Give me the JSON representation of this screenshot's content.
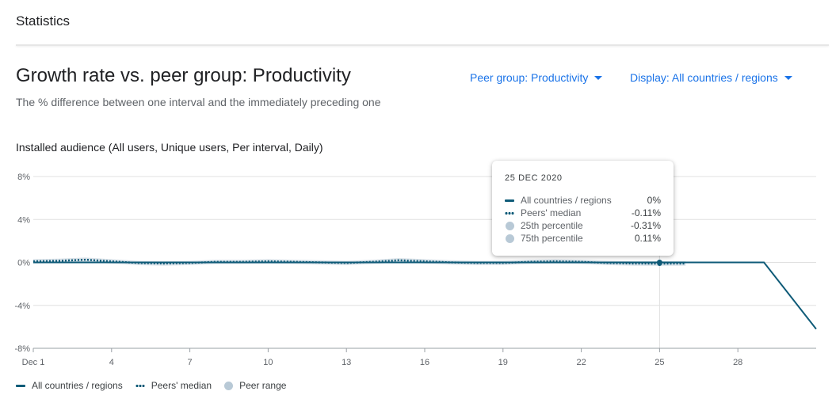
{
  "section": {
    "title": "Statistics"
  },
  "card": {
    "title": "Growth rate vs. peer group: Productivity",
    "subtitle": "The % difference between one interval and the immediately preceding one"
  },
  "controls": {
    "peer_group": "Peer group: Productivity",
    "display": "Display: All countries / regions"
  },
  "chart_label": "Installed audience (All users, Unique users, Per interval, Daily)",
  "colors": {
    "series": "#0f5b78",
    "range": "#b8c9d6",
    "accent": "#1a73e8",
    "grid": "#e0e0e0"
  },
  "tooltip": {
    "date": "25 DEC 2020",
    "rows": [
      {
        "name": "All countries / regions",
        "value": "0%"
      },
      {
        "name": "Peers' median",
        "value": "-0.11%"
      },
      {
        "name": "25th percentile",
        "value": "-0.31%"
      },
      {
        "name": "75th percentile",
        "value": "0.11%"
      }
    ]
  },
  "legend": {
    "items": [
      {
        "name": "All countries / regions",
        "swatch": "line"
      },
      {
        "name": "Peers' median",
        "swatch": "dots"
      },
      {
        "name": "Peer range",
        "swatch": "circle"
      }
    ]
  },
  "chart_data": {
    "type": "line",
    "title": "",
    "xlabel": "",
    "ylabel": "",
    "ylim": [
      -8,
      8
    ],
    "y_ticks": [
      8,
      4,
      0,
      -4,
      -8
    ],
    "y_tick_labels": [
      "8%",
      "4%",
      "0%",
      "-4%",
      "-8%"
    ],
    "x_range": [
      1,
      31
    ],
    "x_ticks": [
      1,
      4,
      7,
      10,
      13,
      16,
      19,
      22,
      25,
      28
    ],
    "x_tick_labels": [
      "Dec 1",
      "4",
      "7",
      "10",
      "13",
      "16",
      "19",
      "22",
      "25",
      "28"
    ],
    "highlight_x": 25,
    "grid": true,
    "legend_position": "bottom-left",
    "series": [
      {
        "name": "All countries / regions",
        "x": [
          1,
          2,
          3,
          4,
          5,
          6,
          7,
          8,
          9,
          10,
          11,
          12,
          13,
          14,
          15,
          16,
          17,
          18,
          19,
          20,
          21,
          22,
          23,
          24,
          25,
          26,
          27,
          28,
          29,
          30,
          31
        ],
        "values": [
          0,
          0,
          0,
          0,
          0,
          0,
          0,
          0,
          0,
          0,
          0,
          0,
          0,
          0,
          0,
          0,
          0,
          0,
          0,
          0,
          0,
          0,
          0,
          0,
          0,
          0,
          0,
          0,
          0,
          -3.1,
          -6.2
        ]
      },
      {
        "name": "Peers' median",
        "x": [
          1,
          2,
          3,
          4,
          5,
          6,
          7,
          8,
          9,
          10,
          11,
          12,
          13,
          14,
          15,
          16,
          17,
          18,
          19,
          20,
          21,
          22,
          23,
          24,
          25,
          26
        ],
        "values": [
          0.1,
          0.15,
          0.25,
          0.1,
          -0.05,
          -0.1,
          -0.05,
          0.05,
          0.05,
          0.1,
          0.05,
          0,
          -0.05,
          0.05,
          0.2,
          0.1,
          0,
          -0.05,
          -0.05,
          0.05,
          0.1,
          0.05,
          -0.05,
          -0.1,
          -0.11,
          -0.1
        ]
      },
      {
        "name": "Peer range",
        "x": [
          1,
          2,
          3,
          4,
          5,
          6,
          7,
          8,
          9,
          10,
          11,
          12,
          13,
          14,
          15,
          16,
          17,
          18,
          19,
          20,
          21,
          22,
          23,
          24,
          25,
          26
        ],
        "low": [
          -0.1,
          -0.05,
          0,
          -0.1,
          -0.25,
          -0.3,
          -0.25,
          -0.15,
          -0.15,
          -0.1,
          -0.15,
          -0.2,
          -0.25,
          -0.15,
          0,
          -0.1,
          -0.2,
          -0.25,
          -0.25,
          -0.15,
          -0.1,
          -0.15,
          -0.25,
          -0.3,
          -0.31,
          -0.3
        ],
        "high": [
          0.3,
          0.35,
          0.45,
          0.3,
          0.15,
          0.1,
          0.15,
          0.25,
          0.25,
          0.3,
          0.25,
          0.2,
          0.15,
          0.25,
          0.4,
          0.3,
          0.2,
          0.15,
          0.15,
          0.25,
          0.3,
          0.25,
          0.15,
          0.1,
          0.11,
          0.1
        ]
      }
    ]
  }
}
